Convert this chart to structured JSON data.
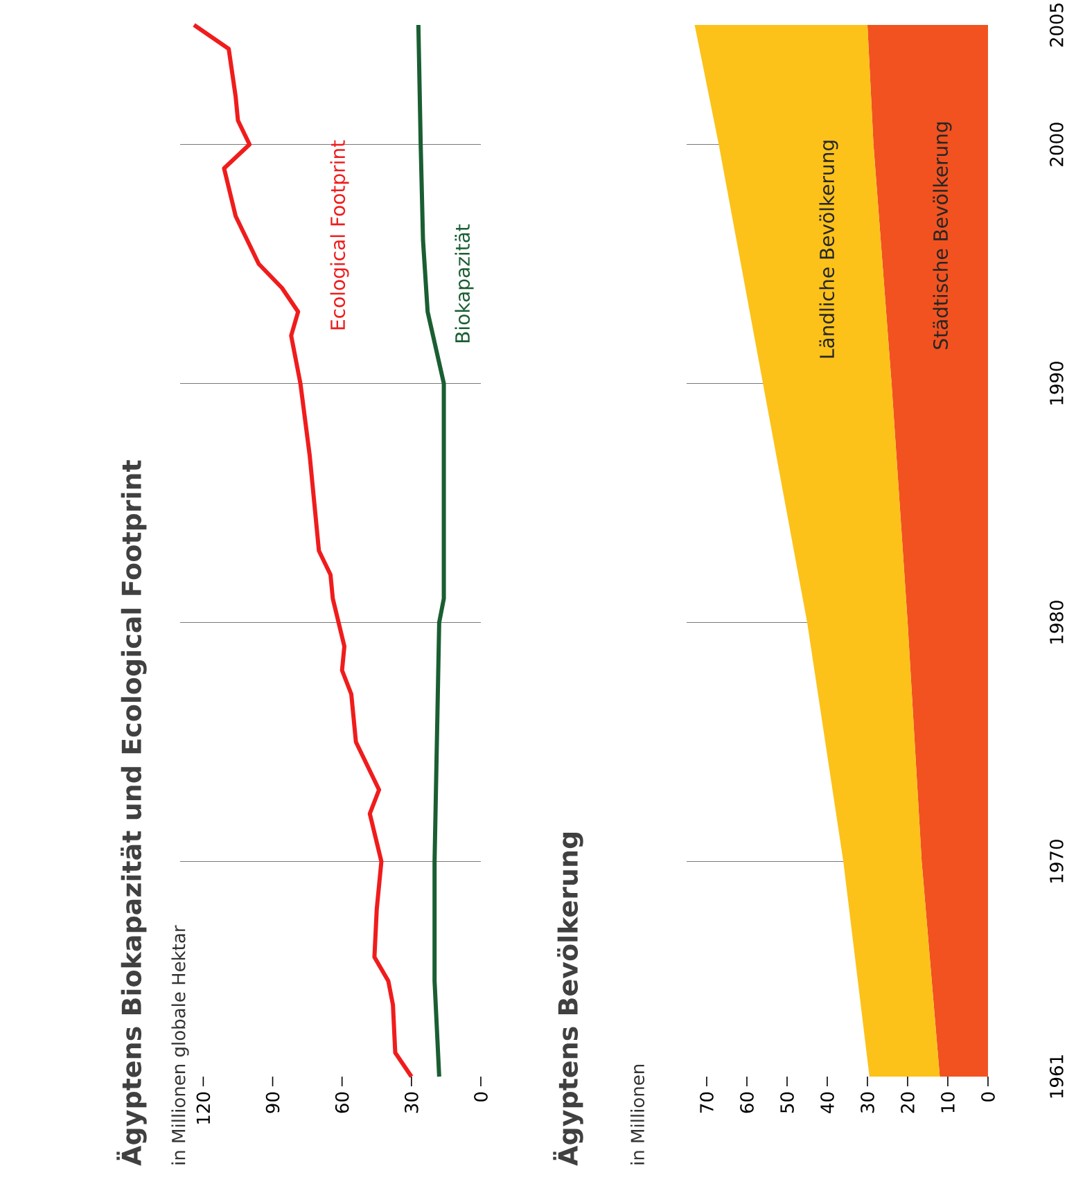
{
  "chart_data": [
    {
      "type": "line",
      "orientation": "horizontal",
      "title": "Ägyptens Biokapazität und Ecological Footprint",
      "subtitle": "in Millionen globale Hektar",
      "ylim": [
        1961,
        2005
      ],
      "xlim": [
        130,
        0
      ],
      "xticks": [
        0,
        30,
        60,
        90,
        120
      ],
      "tick_labels": "x",
      "ref_lines": [
        {
          "axis": "y",
          "value": 1970,
          "color": "#555555"
        },
        {
          "axis": "y",
          "value": 1980,
          "color": "#555555"
        },
        {
          "axis": "y",
          "value": 1990,
          "color": "#555555"
        },
        {
          "axis": "y",
          "value": 2000,
          "color": "#555555"
        }
      ],
      "series": [
        {
          "name": "Ecological Footprint",
          "color": "#f01c1c",
          "x": [
            1961,
            1962,
            1964,
            1965,
            1966,
            1968,
            1970,
            1972,
            1973,
            1975,
            1977,
            1978,
            1979,
            1981,
            1982,
            1983,
            1985,
            1987,
            1990,
            1992,
            1993,
            1994,
            1995,
            1997,
            1999,
            2000,
            2001,
            2002,
            2004,
            2005
          ],
          "values": [
            30,
            37,
            38,
            40,
            46,
            45,
            43,
            48,
            44,
            54,
            56,
            60,
            59,
            64,
            65,
            70,
            72,
            74,
            78,
            82,
            79,
            86,
            96,
            106,
            111,
            100,
            105,
            106,
            109,
            124
          ]
        },
        {
          "name": "Biokapazität",
          "color": "#1a5e32",
          "x": [
            1961,
            1965,
            1970,
            1980,
            1981,
            1990,
            1993,
            1996,
            2000,
            2005
          ],
          "values": [
            18,
            20,
            20,
            18,
            16,
            16,
            23,
            25,
            26,
            27
          ]
        }
      ]
    },
    {
      "type": "area",
      "orientation": "horizontal",
      "stacked": true,
      "title": "Ägyptens Bevölkerung",
      "subtitle": "in Millionen",
      "x": [
        1961,
        1970,
        1980,
        1990,
        2000,
        2005
      ],
      "ylim": [
        1961,
        2005
      ],
      "yticks": [
        1961,
        1970,
        1980,
        1990,
        2000,
        2005
      ],
      "xlim": [
        75,
        0
      ],
      "xticks": [
        0,
        10,
        20,
        30,
        40,
        50,
        60,
        70
      ],
      "ref_lines": [
        {
          "axis": "y",
          "value": 1970,
          "color": "#555555"
        },
        {
          "axis": "y",
          "value": 1980,
          "color": "#555555"
        },
        {
          "axis": "y",
          "value": 1990,
          "color": "#555555"
        },
        {
          "axis": "y",
          "value": 2000,
          "color": "#555555"
        }
      ],
      "series": [
        {
          "name": "Städtische Bevölkerung",
          "color": "#f2521f",
          "values": [
            12,
            16.5,
            20,
            24,
            28.5,
            30
          ]
        },
        {
          "name": "Ländliche Bevölkerung",
          "color": "#fcc21a",
          "values": [
            17.5,
            19.5,
            25,
            32,
            38.5,
            43
          ]
        }
      ]
    }
  ]
}
